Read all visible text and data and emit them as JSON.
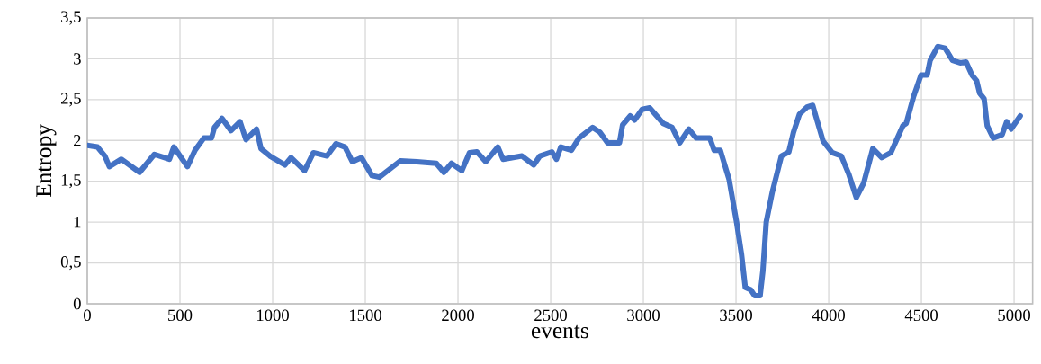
{
  "chart_data": {
    "type": "line",
    "xlabel": "events",
    "ylabel": "Entropy",
    "color": "#4472c4",
    "grid": true,
    "xlim": [
      0,
      5100
    ],
    "ylim": [
      0,
      3.5
    ],
    "xticks": [
      0,
      500,
      1000,
      1500,
      2000,
      2500,
      3000,
      3500,
      4000,
      4500,
      5000
    ],
    "yticks": [
      0,
      {
        "value": 0.5,
        "label": "0,5"
      },
      1,
      {
        "value": 1.5,
        "label": "1,5"
      },
      2,
      {
        "value": 2.5,
        "label": "2,5"
      },
      3,
      {
        "value": 3.5,
        "label": "3,5"
      }
    ],
    "x": [
      0,
      55,
      95,
      119,
      184,
      282,
      362,
      443,
      467,
      540,
      581,
      629,
      670,
      686,
      727,
      775,
      824,
      856,
      913,
      937,
      985,
      1066,
      1099,
      1172,
      1220,
      1293,
      1341,
      1390,
      1430,
      1479,
      1536,
      1576,
      1689,
      1778,
      1883,
      1924,
      1965,
      2021,
      2062,
      2102,
      2150,
      2215,
      2243,
      2345,
      2409,
      2442,
      2507,
      2531,
      2555,
      2612,
      2653,
      2726,
      2766,
      2807,
      2871,
      2888,
      2929,
      2953,
      2993,
      3034,
      3107,
      3155,
      3196,
      3245,
      3285,
      3358,
      3382,
      3415,
      3463,
      3503,
      3530,
      3550,
      3580,
      3600,
      3630,
      3645,
      3663,
      3696,
      3745,
      3785,
      3810,
      3842,
      3883,
      3914,
      3930,
      3970,
      4019,
      4068,
      4108,
      4149,
      4189,
      4238,
      4286,
      4335,
      4400,
      4418,
      4458,
      4498,
      4531,
      4547,
      4588,
      4628,
      4668,
      4709,
      4741,
      4773,
      4798,
      4814,
      4838,
      4855,
      4887,
      4935,
      4960,
      4984,
      5033
    ],
    "values": [
      1.94,
      1.92,
      1.81,
      1.68,
      1.77,
      1.61,
      1.83,
      1.77,
      1.92,
      1.68,
      1.88,
      2.03,
      2.03,
      2.16,
      2.27,
      2.12,
      2.23,
      2.01,
      2.14,
      1.9,
      1.81,
      1.7,
      1.79,
      1.63,
      1.85,
      1.81,
      1.96,
      1.92,
      1.74,
      1.79,
      1.57,
      1.55,
      1.75,
      1.74,
      1.72,
      1.61,
      1.72,
      1.63,
      1.85,
      1.86,
      1.74,
      1.92,
      1.77,
      1.81,
      1.7,
      1.81,
      1.86,
      1.77,
      1.92,
      1.88,
      2.03,
      2.16,
      2.1,
      1.97,
      1.97,
      2.19,
      2.3,
      2.25,
      2.38,
      2.4,
      2.21,
      2.16,
      1.97,
      2.14,
      2.03,
      2.03,
      1.88,
      1.88,
      1.52,
      1.0,
      0.6,
      0.2,
      0.17,
      0.1,
      0.1,
      0.4,
      1.0,
      1.37,
      1.81,
      1.86,
      2.1,
      2.32,
      2.41,
      2.43,
      2.3,
      1.99,
      1.85,
      1.81,
      1.59,
      1.3,
      1.48,
      1.9,
      1.79,
      1.85,
      2.18,
      2.21,
      2.54,
      2.8,
      2.8,
      2.98,
      3.15,
      3.13,
      2.98,
      2.95,
      2.96,
      2.8,
      2.73,
      2.58,
      2.51,
      2.18,
      2.03,
      2.07,
      2.23,
      2.14,
      2.3
    ]
  }
}
